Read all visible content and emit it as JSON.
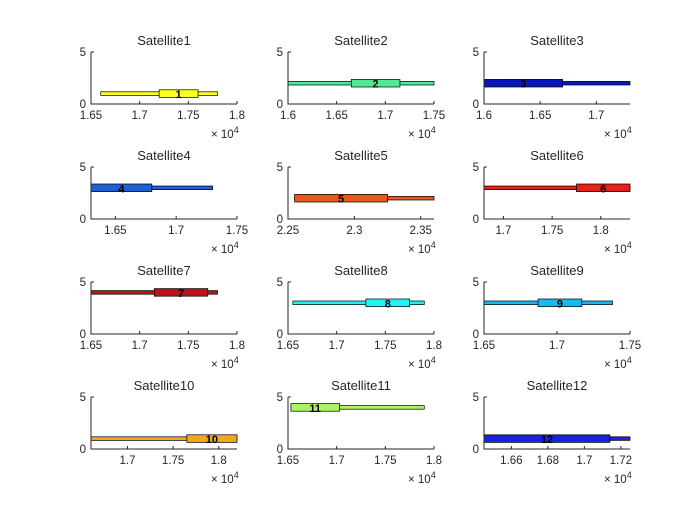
{
  "figure": {
    "background": "#ffffff",
    "axis_color": "#262626"
  },
  "chart_data": [
    {
      "type": "bar",
      "title": "Satellite1",
      "label": "1",
      "color": "#FFFF22",
      "y": 1,
      "ylim": [
        0,
        5
      ],
      "yticks": [
        "0",
        "5"
      ],
      "xlim": [
        1.65,
        1.8
      ],
      "xticks": [
        1.65,
        1.7,
        1.75,
        1.8
      ],
      "xtick_labels": [
        "1.65",
        "1.7",
        "1.75",
        "1.8"
      ],
      "multiplier": "× 10",
      "exponent": "4",
      "line": [
        1.66,
        1.78
      ],
      "box": [
        1.72,
        1.76
      ]
    },
    {
      "type": "bar",
      "title": "Satellite2",
      "label": "2",
      "color": "#55E894",
      "y": 2,
      "ylim": [
        0,
        5
      ],
      "yticks": [
        "0",
        "5"
      ],
      "xlim": [
        1.6,
        1.75
      ],
      "xticks": [
        1.6,
        1.65,
        1.7,
        1.75
      ],
      "xtick_labels": [
        "1.6",
        "1.65",
        "1.7",
        "1.75"
      ],
      "multiplier": "× 10",
      "exponent": "4",
      "line": [
        1.6,
        1.75
      ],
      "box": [
        1.665,
        1.715
      ]
    },
    {
      "type": "bar",
      "title": "Satellite3",
      "label": "3",
      "color": "#0A1AB8",
      "y": 2,
      "ylim": [
        0,
        5
      ],
      "yticks": [
        "0",
        "5"
      ],
      "xlim": [
        1.6,
        1.73
      ],
      "xticks": [
        1.6,
        1.65,
        1.7
      ],
      "xtick_labels": [
        "1.6",
        "1.65",
        "1.7"
      ],
      "multiplier": "× 10",
      "exponent": "4",
      "line": [
        1.6,
        1.73
      ],
      "box": [
        1.6,
        1.67
      ]
    },
    {
      "type": "bar",
      "title": "Satellite4",
      "label": "4",
      "color": "#1E5FD6",
      "y": 3,
      "ylim": [
        0,
        5
      ],
      "yticks": [
        "0",
        "5"
      ],
      "xlim": [
        1.63,
        1.75
      ],
      "xticks": [
        1.65,
        1.7,
        1.75
      ],
      "xtick_labels": [
        "1.65",
        "1.7",
        "1.75"
      ],
      "multiplier": "× 10",
      "exponent": "4",
      "line": [
        1.63,
        1.73
      ],
      "box": [
        1.63,
        1.68
      ]
    },
    {
      "type": "bar",
      "title": "Satellite5",
      "label": "5",
      "color": "#E8581E",
      "y": 2,
      "ylim": [
        0,
        5
      ],
      "yticks": [
        "0",
        "5"
      ],
      "xlim": [
        2.25,
        2.36
      ],
      "xticks": [
        2.25,
        2.3,
        2.35
      ],
      "xtick_labels": [
        "2.25",
        "2.3",
        "2.35"
      ],
      "multiplier": "× 10",
      "exponent": "4",
      "line": [
        2.255,
        2.36
      ],
      "box": [
        2.255,
        2.325
      ]
    },
    {
      "type": "bar",
      "title": "Satellite6",
      "label": "6",
      "color": "#E8201A",
      "y": 3,
      "ylim": [
        0,
        5
      ],
      "yticks": [
        "0",
        "5"
      ],
      "xlim": [
        1.68,
        1.83
      ],
      "xticks": [
        1.7,
        1.75,
        1.8
      ],
      "xtick_labels": [
        "1.7",
        "1.75",
        "1.8"
      ],
      "multiplier": "× 10",
      "exponent": "4",
      "line": [
        1.68,
        1.83
      ],
      "box": [
        1.775,
        1.83
      ]
    },
    {
      "type": "bar",
      "title": "Satellite7",
      "label": "7",
      "color": "#B8121A",
      "y": 4,
      "ylim": [
        0,
        5
      ],
      "yticks": [
        "0",
        "5"
      ],
      "xlim": [
        1.65,
        1.8
      ],
      "xticks": [
        1.65,
        1.7,
        1.75,
        1.8
      ],
      "xtick_labels": [
        "1.65",
        "1.7",
        "1.75",
        "1.8"
      ],
      "multiplier": "× 10",
      "exponent": "4",
      "line": [
        1.65,
        1.78
      ],
      "box": [
        1.715,
        1.77
      ]
    },
    {
      "type": "bar",
      "title": "Satellite8",
      "label": "8",
      "color": "#22F2F2",
      "y": 3,
      "ylim": [
        0,
        5
      ],
      "yticks": [
        "0",
        "5"
      ],
      "xlim": [
        1.65,
        1.8
      ],
      "xticks": [
        1.65,
        1.7,
        1.75,
        1.8
      ],
      "xtick_labels": [
        "1.65",
        "1.7",
        "1.75",
        "1.8"
      ],
      "multiplier": "× 10",
      "exponent": "4",
      "line": [
        1.655,
        1.79
      ],
      "box": [
        1.73,
        1.775
      ]
    },
    {
      "type": "bar",
      "title": "Satellite9",
      "label": "9",
      "color": "#1AB8F2",
      "y": 3,
      "ylim": [
        0,
        5
      ],
      "yticks": [
        "0",
        "5"
      ],
      "xlim": [
        1.65,
        1.75
      ],
      "xticks": [
        1.65,
        1.7,
        1.75
      ],
      "xtick_labels": [
        "1.65",
        "1.7",
        "1.75"
      ],
      "multiplier": "× 10",
      "exponent": "4",
      "line": [
        1.65,
        1.738
      ],
      "box": [
        1.687,
        1.717
      ]
    },
    {
      "type": "bar",
      "title": "Satellite10",
      "label": "10",
      "color": "#F2A81A",
      "y": 1,
      "ylim": [
        0,
        5
      ],
      "yticks": [
        "0",
        "5"
      ],
      "xlim": [
        1.66,
        1.82
      ],
      "xticks": [
        1.7,
        1.75,
        1.8
      ],
      "xtick_labels": [
        "1.7",
        "1.75",
        "1.8"
      ],
      "multiplier": "× 10",
      "exponent": "4",
      "line": [
        1.66,
        1.82
      ],
      "box": [
        1.765,
        1.82
      ]
    },
    {
      "type": "bar",
      "title": "Satellite11",
      "label": "11",
      "color": "#AAF266",
      "y": 4,
      "ylim": [
        0,
        5
      ],
      "yticks": [
        "0",
        "5"
      ],
      "xlim": [
        1.65,
        1.8
      ],
      "xticks": [
        1.65,
        1.7,
        1.75,
        1.8
      ],
      "xtick_labels": [
        "1.65",
        "1.7",
        "1.75",
        "1.8"
      ],
      "multiplier": "× 10",
      "exponent": "4",
      "line": [
        1.653,
        1.79
      ],
      "box": [
        1.653,
        1.703
      ]
    },
    {
      "type": "bar",
      "title": "Satellite12",
      "label": "12",
      "color": "#1A22E0",
      "y": 1,
      "ylim": [
        0,
        5
      ],
      "yticks": [
        "0",
        "5"
      ],
      "xlim": [
        1.645,
        1.725
      ],
      "xticks": [
        1.66,
        1.68,
        1.7,
        1.72
      ],
      "xtick_labels": [
        "1.66",
        "1.68",
        "1.7",
        "1.72"
      ],
      "multiplier": "× 10",
      "exponent": "4",
      "line": [
        1.645,
        1.725
      ],
      "box": [
        1.645,
        1.714
      ]
    }
  ]
}
